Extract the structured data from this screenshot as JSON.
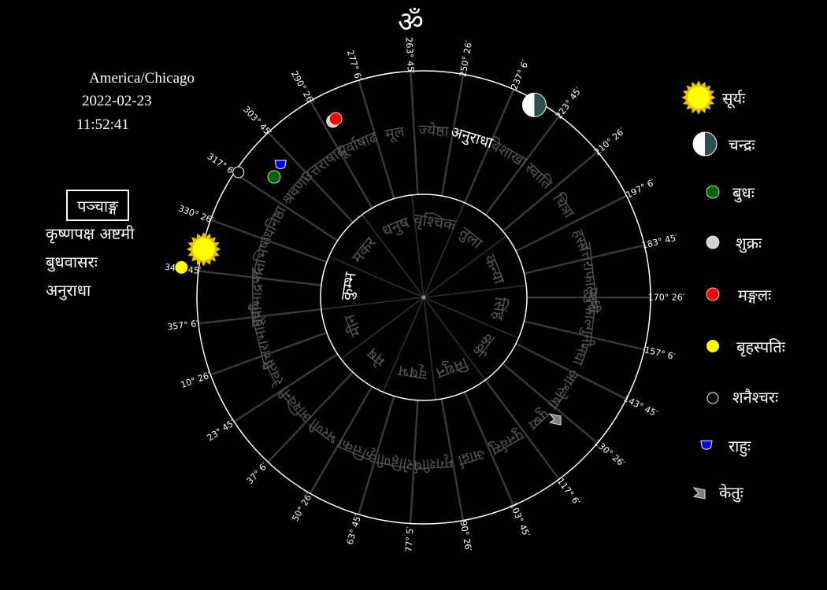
{
  "om": "ॐ",
  "header": {
    "timezone": "America/Chicago",
    "date": "2022-02-23",
    "time": "11:52:41"
  },
  "panchang": {
    "title": "पञ्चाङ्ग",
    "tithi": "कृष्णपक्ष अष्टमी",
    "vara": "बुधवासरः",
    "nakshatra": "अनुराधा"
  },
  "chart_data": {
    "type": "sidereal-wheel",
    "rashis": [
      "मीन",
      "मेष",
      "वृषभ",
      "मिथुन",
      "कर्क",
      "सिंह",
      "कन्या",
      "तुला",
      "वृश्चिक",
      "धनुष",
      "मकर",
      "कुम्भ"
    ],
    "nakshatras": [
      "उत्तराभाद्रपद",
      "रेवती",
      "अश्विनी",
      "भरणी",
      "कृत्तिका",
      "रोहिणी",
      "मृगशीर्ष",
      "आर्द्रा",
      "पुनर्वसु",
      "पुष्य",
      "आश्लेषा",
      "मघा",
      "पूर्वफाल्गुनी",
      "उत्तराफाल्गुनी",
      "हस्त",
      "चित्रा",
      "स्वाति",
      "विशाखा",
      "अनुराधा",
      "ज्येष्ठा",
      "मूल",
      "पूर्वाषाढ",
      "उत्तराषाढ",
      "श्रवणा",
      "धनिष्ठा",
      "शतभिषा",
      "पूर्वाभाद्रपद"
    ],
    "degree_labels": [
      "10° 26′",
      "23° 45′",
      "37° 6′",
      "50° 26′",
      "63° 45′",
      "77° 5′",
      "90° 26′",
      "103° 45′",
      "117° 6′",
      "130° 26′",
      "143° 45′",
      "157° 6′",
      "170° 26′",
      "183° 45′",
      "197° 6′",
      "210° 26′",
      "223° 45′",
      "237° 6′",
      "250° 26′",
      "263° 45′",
      "277° 6′",
      "290° 26′",
      "303° 45′",
      "317° 6′",
      "330° 26′",
      "343° 45′",
      "357° 6′"
    ],
    "highlight_rashi": "कुम्भ",
    "highlight_nakshatra": "अनुराधा",
    "planets": [
      {
        "name": "surya",
        "angle": 341,
        "color": "#ffff00"
      },
      {
        "name": "chandra",
        "angle": 233.5,
        "color": "#2f4f4f"
      },
      {
        "name": "budha",
        "angle": 314.5,
        "color": "#006400"
      },
      {
        "name": "shukra",
        "angle": 290.6,
        "color": "#d3d3d3"
      },
      {
        "name": "mangala",
        "angle": 289.6,
        "color": "#ff0000"
      },
      {
        "name": "brihaspati",
        "angle": 346.3,
        "color": "#ffff00"
      },
      {
        "name": "shani",
        "angle": 319.3,
        "color": "#000000"
      },
      {
        "name": "rahu",
        "angle": 310.5,
        "color": "#0000ff"
      },
      {
        "name": "ketu",
        "angle": 130.5,
        "color": "#808080"
      }
    ]
  },
  "legend": [
    {
      "key": "surya",
      "label": "सूर्यः",
      "color": "#ffff00",
      "icon": "sun-icon"
    },
    {
      "key": "chandra",
      "label": "चन्द्रः",
      "color": "#2f4f4f",
      "icon": "moon-icon"
    },
    {
      "key": "budha",
      "label": "बुधः",
      "color": "#006400",
      "icon": "dot-icon"
    },
    {
      "key": "shukra",
      "label": "शुक्रः",
      "color": "#d3d3d3",
      "icon": "dot-icon"
    },
    {
      "key": "mangala",
      "label": "मङ्गलः",
      "color": "#ff0000",
      "icon": "dot-icon"
    },
    {
      "key": "brihaspati",
      "label": "बृहस्पतिः",
      "color": "#ffff00",
      "icon": "dot-icon"
    },
    {
      "key": "shani",
      "label": "शनैश्चरः",
      "color": "#000000",
      "icon": "ring-icon"
    },
    {
      "key": "rahu",
      "label": "राहुः",
      "color": "#0000ff",
      "icon": "rahu-icon"
    },
    {
      "key": "ketu",
      "label": "केतुः",
      "color": "#808080",
      "icon": "ketu-icon"
    }
  ]
}
